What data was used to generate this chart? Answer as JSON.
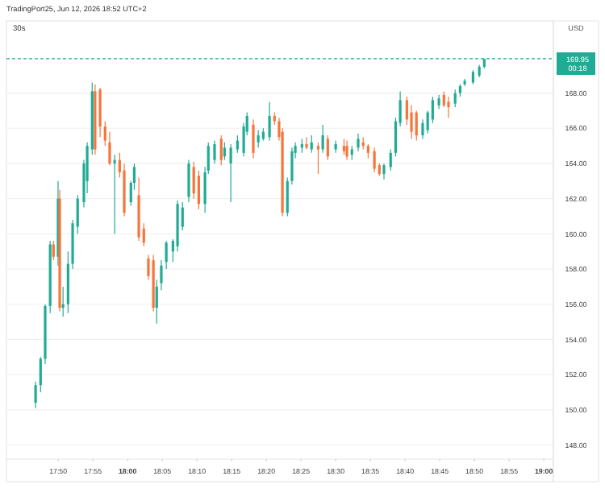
{
  "chart_data": {
    "type": "candlestick",
    "title": "30s",
    "subtitle": "TradingPort25, Jun 12, 2026 18:52 UTC+2",
    "ylabel": "USD",
    "annotations": [
      "00:18"
    ],
    "colors": [
      "#22ab94",
      "#22ab94",
      "#22ab94",
      "#22ab94",
      "#f7743a",
      "#22ab94",
      "#f7743a",
      "#22ab94",
      "#22ab94",
      "#22ab94",
      "#22ab94",
      "#22ab94",
      "#22ab94",
      "#22ab94",
      "#f7743a",
      "#f7743a",
      "#f7743a",
      "#f7743a",
      "#22ab94",
      "#f7743a",
      "#f7743a",
      "#22ab94",
      "#22ab94",
      "#f7743a",
      "#f7743a",
      "#f7743a",
      "#f7743a",
      "#22ab94",
      "#22ab94",
      "#22ab94",
      "#22ab94",
      "#22ab94",
      "#22ab94",
      "#22ab94",
      "#f7743a",
      "#f7743a",
      "#22ab94",
      "#22ab94",
      "#22ab94",
      "#f7743a",
      "#22ab94",
      "#22ab94",
      "#22ab94",
      "#22ab94",
      "#22ab94",
      "#f7743a",
      "#22ab94",
      "#22ab94",
      "#22ab94",
      "#f7743a",
      "#f7743a",
      "#f7743a",
      "#22ab94",
      "#22ab94",
      "#22ab94",
      "#22ab94",
      "#f7743a",
      "#22ab94",
      "#f7743a",
      "#22ab94",
      "#f7743a",
      "#22ab94",
      "#f7743a",
      "#f7743a",
      "#22ab94",
      "#22ab94",
      "#f7743a",
      "#f7743a",
      "#f7743a",
      "#f7743a",
      "#22ab94",
      "#22ab94",
      "#22ab94",
      "#22ab94",
      "#f7743a",
      "#f7743a",
      "#f7743a",
      "#22ab94",
      "#22ab94",
      "#22ab94",
      "#22ab94",
      "#f7743a",
      "#f7743a",
      "#22ab94",
      "#22ab94",
      "#22ab94",
      "#22ab94",
      "#22ab94",
      "#22ab94"
    ],
    "x": [
      17.779,
      17.791,
      17.802,
      17.814,
      17.822,
      17.833,
      17.837,
      17.845,
      17.857,
      17.868,
      17.88,
      17.895,
      17.903,
      17.915,
      17.922,
      17.934,
      17.946,
      17.957,
      17.969,
      17.981,
      17.992,
      18.008,
      18.016,
      18.027,
      18.039,
      18.05,
      18.062,
      18.07,
      18.081,
      18.093,
      18.109,
      18.12,
      18.132,
      18.147,
      18.159,
      18.171,
      18.186,
      18.194,
      18.209,
      18.225,
      18.233,
      18.248,
      18.264,
      18.279,
      18.287,
      18.302,
      18.314,
      18.326,
      18.341,
      18.353,
      18.364,
      18.372,
      18.384,
      18.395,
      18.403,
      18.419,
      18.43,
      18.442,
      18.458,
      18.469,
      18.481,
      18.5,
      18.52,
      18.527,
      18.539,
      18.554,
      18.566,
      18.578,
      18.593,
      18.605,
      18.616,
      18.632,
      18.644,
      18.655,
      18.671,
      18.682,
      18.694,
      18.709,
      18.721,
      18.733,
      18.748,
      18.76,
      18.771,
      18.787,
      18.799,
      18.81,
      18.83,
      18.845,
      18.857
    ],
    "ohlc": [
      [
        150.4,
        151.6,
        150.1,
        151.4
      ],
      [
        151.4,
        153.0,
        151.0,
        152.9
      ],
      [
        152.9,
        156.0,
        152.6,
        155.9
      ],
      [
        155.9,
        159.6,
        155.5,
        159.4
      ],
      [
        159.4,
        159.6,
        158.5,
        158.7
      ],
      [
        158.7,
        163.0,
        158.2,
        162.0
      ],
      [
        162.0,
        162.5,
        155.6,
        155.8
      ],
      [
        155.8,
        157.0,
        155.3,
        156.0
      ],
      [
        156.0,
        159.0,
        155.5,
        158.3
      ],
      [
        158.3,
        160.8,
        158.0,
        160.6
      ],
      [
        160.4,
        162.2,
        160.0,
        162.0
      ],
      [
        161.8,
        164.2,
        161.5,
        164.0
      ],
      [
        163.0,
        165.2,
        162.3,
        165.0
      ],
      [
        164.8,
        168.6,
        164.5,
        168.1
      ],
      [
        168.1,
        168.5,
        164.5,
        164.8
      ],
      [
        168.2,
        168.3,
        165.5,
        166.1
      ],
      [
        166.1,
        166.4,
        165.0,
        165.3
      ],
      [
        165.2,
        165.8,
        163.9,
        164.0
      ],
      [
        164.0,
        164.5,
        160.0,
        164.2
      ],
      [
        164.2,
        164.6,
        163.2,
        163.5
      ],
      [
        163.6,
        164.0,
        161.0,
        161.2
      ],
      [
        161.8,
        163.0,
        161.6,
        162.9
      ],
      [
        162.9,
        164.0,
        162.5,
        163.8
      ],
      [
        162.2,
        163.2,
        159.6,
        159.8
      ],
      [
        160.3,
        160.6,
        159.3,
        159.5
      ],
      [
        158.6,
        158.8,
        157.4,
        157.6
      ],
      [
        158.5,
        158.8,
        155.6,
        155.8
      ],
      [
        155.8,
        157.4,
        154.9,
        157.0
      ],
      [
        157.2,
        158.5,
        156.8,
        158.2
      ],
      [
        158.4,
        159.6,
        158.0,
        159.5
      ],
      [
        159.0,
        159.7,
        158.4,
        159.6
      ],
      [
        159.3,
        161.9,
        159.0,
        161.7
      ],
      [
        160.4,
        161.8,
        160.2,
        161.5
      ],
      [
        162.1,
        164.2,
        161.8,
        164.0
      ],
      [
        163.8,
        164.1,
        162.0,
        162.3
      ],
      [
        163.3,
        163.6,
        161.4,
        161.7
      ],
      [
        161.7,
        163.8,
        161.2,
        163.5
      ],
      [
        163.6,
        165.2,
        163.4,
        165.0
      ],
      [
        164.2,
        165.3,
        164.0,
        165.1
      ],
      [
        165.4,
        165.6,
        163.9,
        164.2
      ],
      [
        164.4,
        165.2,
        164.2,
        164.9
      ],
      [
        164.0,
        165.1,
        161.8,
        164.9
      ],
      [
        164.8,
        165.6,
        164.6,
        165.3
      ],
      [
        164.6,
        166.3,
        164.4,
        166.1
      ],
      [
        165.8,
        166.9,
        165.6,
        166.7
      ],
      [
        166.2,
        166.5,
        164.3,
        164.6
      ],
      [
        165.2,
        165.9,
        164.9,
        165.6
      ],
      [
        165.4,
        166.0,
        165.3,
        165.8
      ],
      [
        165.5,
        167.5,
        165.3,
        166.7
      ],
      [
        166.7,
        166.9,
        166.2,
        166.4
      ],
      [
        166.4,
        166.6,
        165.3,
        165.5
      ],
      [
        165.8,
        166.0,
        161.0,
        161.2
      ],
      [
        161.2,
        163.2,
        161.0,
        163.0
      ],
      [
        163.0,
        164.9,
        162.8,
        164.7
      ],
      [
        164.6,
        165.2,
        164.3,
        165.0
      ],
      [
        164.9,
        165.4,
        164.6,
        165.1
      ],
      [
        165.1,
        165.5,
        164.8,
        164.9
      ],
      [
        164.8,
        165.6,
        164.6,
        165.2
      ],
      [
        165.0,
        165.2,
        163.4,
        164.8
      ],
      [
        164.8,
        166.2,
        164.6,
        165.6
      ],
      [
        165.4,
        165.6,
        164.2,
        164.4
      ],
      [
        164.8,
        165.3,
        164.6,
        165.1
      ],
      [
        165.0,
        165.4,
        164.5,
        164.7
      ],
      [
        165.0,
        165.3,
        164.2,
        164.4
      ],
      [
        164.5,
        165.0,
        164.2,
        164.8
      ],
      [
        164.9,
        165.7,
        164.7,
        165.4
      ],
      [
        165.2,
        165.5,
        164.8,
        165.0
      ],
      [
        165.0,
        165.1,
        164.3,
        164.6
      ],
      [
        164.7,
        164.9,
        163.5,
        163.7
      ],
      [
        163.9,
        164.0,
        163.3,
        163.4
      ],
      [
        163.4,
        164.0,
        163.1,
        163.9
      ],
      [
        163.8,
        164.8,
        163.6,
        164.6
      ],
      [
        164.6,
        166.6,
        164.4,
        166.4
      ],
      [
        166.3,
        168.1,
        166.1,
        167.6
      ],
      [
        167.6,
        167.8,
        166.2,
        166.5
      ],
      [
        166.9,
        167.3,
        165.4,
        165.8
      ],
      [
        166.9,
        167.0,
        165.3,
        165.6
      ],
      [
        165.6,
        166.5,
        165.4,
        166.3
      ],
      [
        165.9,
        167.0,
        165.7,
        166.9
      ],
      [
        166.5,
        167.8,
        166.3,
        167.6
      ],
      [
        167.3,
        167.9,
        167.1,
        167.7
      ],
      [
        167.9,
        168.1,
        167.2,
        167.3
      ],
      [
        167.5,
        167.8,
        166.6,
        167.2
      ],
      [
        167.4,
        168.2,
        167.2,
        168.0
      ],
      [
        168.0,
        168.5,
        167.8,
        168.4
      ],
      [
        168.5,
        168.8,
        168.4,
        168.7
      ],
      [
        168.6,
        169.3,
        168.5,
        169.2
      ],
      [
        169.0,
        169.6,
        168.9,
        169.5
      ],
      [
        169.5,
        169.95,
        169.4,
        169.95
      ]
    ],
    "xlim": [
      17.709,
      19.023
    ],
    "xticks": [
      {
        "value": 17.8333,
        "label": "17:50"
      },
      {
        "value": 17.9167,
        "label": "17:55"
      },
      {
        "value": 18,
        "label": "18:00"
      },
      {
        "value": 18.0833,
        "label": "18:05"
      },
      {
        "value": 18.1667,
        "label": "18:10"
      },
      {
        "value": 18.25,
        "label": "18:15"
      },
      {
        "value": 18.3333,
        "label": "18:20"
      },
      {
        "value": 18.4167,
        "label": "18:25"
      },
      {
        "value": 18.5,
        "label": "18:30"
      },
      {
        "value": 18.5833,
        "label": "18:35"
      },
      {
        "value": 18.6667,
        "label": "18:40"
      },
      {
        "value": 18.75,
        "label": "18:45"
      },
      {
        "value": 18.8333,
        "label": "18:50"
      },
      {
        "value": 18.9167,
        "label": "18:55"
      },
      {
        "value": 19,
        "label": "19:00"
      }
    ],
    "ylim": [
      147.2,
      172.1
    ],
    "yticks": [
      {
        "value": 148,
        "label": "148.00"
      },
      {
        "value": 150,
        "label": "150.00"
      },
      {
        "value": 152,
        "label": "152.00"
      },
      {
        "value": 154,
        "label": "154.00"
      },
      {
        "value": 156,
        "label": "156.00"
      },
      {
        "value": 158,
        "label": "158.00"
      },
      {
        "value": 160,
        "label": "160.00"
      },
      {
        "value": 162,
        "label": "162.00"
      },
      {
        "value": 164,
        "label": "164.00"
      },
      {
        "value": 166,
        "label": "166.00"
      },
      {
        "value": 168,
        "label": "168.00"
      }
    ],
    "grid": true,
    "ref_lines": [
      {
        "axis": "y",
        "value": 169.95,
        "label": "169.95",
        "color": "#22ab94",
        "line_style": "dashed"
      }
    ]
  }
}
